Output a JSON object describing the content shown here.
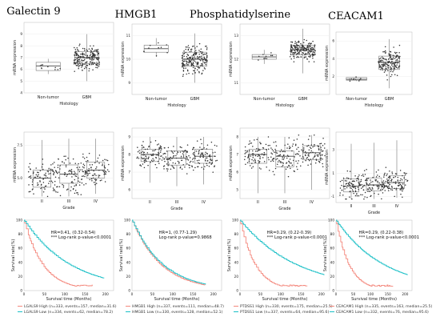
{
  "panels": [
    {
      "title": "Galectin 9",
      "histology": {
        "ylabel": "mRNA expression",
        "xlabel": "Histology",
        "ylim": [
          4,
          10
        ],
        "yticks": [
          "4",
          "5",
          "6",
          "7",
          "8",
          "9"
        ],
        "groups": [
          {
            "label": "Non-tumor",
            "q1": 5.9,
            "median": 6.3,
            "q3": 6.6,
            "min": 5.6,
            "max": 6.9,
            "n": 10
          },
          {
            "label": "GBM",
            "q1": 6.5,
            "median": 7.0,
            "q3": 7.5,
            "min": 5.0,
            "max": 9.0,
            "n": 200
          }
        ]
      },
      "grade": {
        "ylabel": "mRNA expression",
        "xlabel": "Grade",
        "ylim": [
          3.5,
          8.5
        ],
        "yticks": [
          "5.0",
          "7.5"
        ],
        "groups": [
          {
            "label": "II",
            "q1": 4.3,
            "median": 5.0,
            "q3": 5.6,
            "min": 3.6,
            "max": 7.9
          },
          {
            "label": "III",
            "q1": 4.6,
            "median": 5.3,
            "q3": 6.0,
            "min": 3.6,
            "max": 8.0
          },
          {
            "label": "IV",
            "q1": 5.0,
            "median": 5.6,
            "q3": 6.2,
            "min": 3.8,
            "max": 8.0
          }
        ]
      },
      "survival": {
        "ylabel": "Survival rate(%)",
        "xlabel": "Survival time (Months)",
        "xticks": [
          "0",
          "50",
          "100",
          "150",
          "200"
        ],
        "yticks": [
          "0",
          "20",
          "40",
          "60",
          "80",
          "100"
        ],
        "hr_text": "HR=0.41, (0.32-0.54)",
        "pval_text": "*** Log-rank p-value<0.0001",
        "legend": [
          "LGALS9 High (n=333, events=157, median=31.6)",
          "LGALS9 Low  (n=334, events=62, median=78.2)"
        ],
        "low_median": 78.2,
        "high_median": 31.6
      }
    },
    {
      "title": "HMGB1",
      "histology": {
        "ylabel": "mRNA expression",
        "xlabel": "Histology",
        "ylim": [
          8.5,
          11.5
        ],
        "yticks": [
          "9",
          "10",
          "11"
        ],
        "groups": [
          {
            "label": "Non-tumor",
            "q1": 10.3,
            "median": 10.45,
            "q3": 10.6,
            "min": 10.1,
            "max": 10.9,
            "n": 10
          },
          {
            "label": "GBM",
            "q1": 9.7,
            "median": 10.0,
            "q3": 10.3,
            "min": 9.0,
            "max": 11.1,
            "n": 200
          }
        ]
      },
      "grade": {
        "ylabel": "mRNA expression",
        "xlabel": "Grade",
        "ylim": [
          5.5,
          9.5
        ],
        "yticks": [
          "6",
          "7",
          "8",
          "9"
        ],
        "groups": [
          {
            "label": "II",
            "q1": 7.6,
            "median": 8.0,
            "q3": 8.3,
            "min": 6.4,
            "max": 9.0
          },
          {
            "label": "III",
            "q1": 7.4,
            "median": 7.8,
            "q3": 8.2,
            "min": 6.2,
            "max": 9.0
          },
          {
            "label": "IV",
            "q1": 7.5,
            "median": 7.9,
            "q3": 8.3,
            "min": 6.3,
            "max": 9.0
          }
        ]
      },
      "survival": {
        "ylabel": "Survival rate(%)",
        "xlabel": "Survival time (Months)",
        "xticks": [
          "0",
          "50",
          "100",
          "150",
          "200"
        ],
        "yticks": [
          "0",
          "20",
          "40",
          "60",
          "80",
          "100"
        ],
        "hr_text": "HR=1, (0.77-1.29)",
        "pval_text": "Log-rank p-value=0.9868",
        "legend": [
          "HMGB1 High (n=337, events=111, median=48.7)",
          "HMGB1 Low  (n=330, events=128, median=52.1)"
        ],
        "low_median": 52.1,
        "high_median": 48.7
      }
    },
    {
      "title": "Phosphatidylserine",
      "histology": {
        "ylabel": "mRNA expression",
        "xlabel": "Histology",
        "ylim": [
          10.5,
          13.5
        ],
        "yticks": [
          "11",
          "12",
          "13"
        ],
        "groups": [
          {
            "label": "Non-tumor",
            "q1": 12.0,
            "median": 12.1,
            "q3": 12.2,
            "min": 11.8,
            "max": 12.4,
            "n": 10
          },
          {
            "label": "GBM",
            "q1": 12.2,
            "median": 12.4,
            "q3": 12.6,
            "min": 11.4,
            "max": 13.3,
            "n": 200
          }
        ]
      },
      "grade": {
        "ylabel": "mRNA expression",
        "xlabel": "Grade",
        "ylim": [
          4.5,
          8.5
        ],
        "yticks": [
          "5",
          "6",
          "7",
          "8"
        ],
        "groups": [
          {
            "label": "II",
            "q1": 6.5,
            "median": 7.0,
            "q3": 7.3,
            "min": 4.8,
            "max": 8.0
          },
          {
            "label": "III",
            "q1": 6.3,
            "median": 6.9,
            "q3": 7.2,
            "min": 4.8,
            "max": 8.0
          },
          {
            "label": "IV",
            "q1": 6.7,
            "median": 7.1,
            "q3": 7.5,
            "min": 5.0,
            "max": 8.1
          }
        ]
      },
      "survival": {
        "ylabel": "Survival rate(%)",
        "xlabel": "Survival time (Months)",
        "xticks": [
          "0",
          "50",
          "100",
          "150",
          "200"
        ],
        "yticks": [
          "0",
          "20",
          "40",
          "60",
          "80",
          "100"
        ],
        "hr_text": "HR=0.29, (0.22-0.39)",
        "pval_text": "*** Log-rank p-value<0.0001",
        "legend": [
          "PTDSS1 High (n=330, events=175, median=25.5)",
          "PTDSS1 Low  (n=337, events=64, median=95.6)"
        ],
        "low_median": 95.6,
        "high_median": 25.5
      }
    },
    {
      "title": "CEACAM1",
      "histology": {
        "ylabel": "mRNA expression",
        "xlabel": "Histology",
        "ylim": [
          0,
          7
        ],
        "yticks": [
          "2",
          "4",
          "6"
        ],
        "groups": [
          {
            "label": "Non-tumor",
            "q1": 1.6,
            "median": 1.7,
            "q3": 1.9,
            "min": 1.5,
            "max": 2.0,
            "n": 10
          },
          {
            "label": "GBM",
            "q1": 2.8,
            "median": 3.6,
            "q3": 4.3,
            "min": 0.7,
            "max": 6.2,
            "n": 160
          }
        ]
      },
      "grade": {
        "ylabel": "mRNA expression",
        "xlabel": "Grade",
        "ylim": [
          -1.5,
          4.5
        ],
        "yticks": [
          "-1",
          "1",
          "3"
        ],
        "groups": [
          {
            "label": "II",
            "q1": -0.6,
            "median": -0.1,
            "q3": 0.5,
            "min": -1.2,
            "max": 3.5
          },
          {
            "label": "III",
            "q1": -0.5,
            "median": 0.0,
            "q3": 0.6,
            "min": -1.2,
            "max": 3.6
          },
          {
            "label": "IV",
            "q1": -0.3,
            "median": 0.2,
            "q3": 0.8,
            "min": -1.1,
            "max": 3.8
          }
        ]
      },
      "survival": {
        "ylabel": "Survival rate(%)",
        "xlabel": "Survival time (Months)",
        "xticks": [
          "0",
          "50",
          "100",
          "150",
          "200"
        ],
        "yticks": [
          "0",
          "20",
          "40",
          "60",
          "80",
          "100"
        ],
        "hr_text": "HR=0.29, (0.22-0.38)",
        "pval_text": "*** Log-rank p-value<0.0001",
        "legend": [
          "CEACAM1 High (n=335, events=163, median=25.5)",
          "CEACAM1 Low  (n=332, events=76, median=95.6)"
        ],
        "low_median": 95.6,
        "high_median": 25.5
      }
    }
  ],
  "chart_data": [
    {
      "type": "box",
      "panel": "Galectin 9 – Histology",
      "categories": [
        "Non-tumor",
        "GBM"
      ],
      "medians": [
        6.3,
        7.0
      ],
      "ylabel": "mRNA expression",
      "xlabel": "Histology"
    },
    {
      "type": "box",
      "panel": "HMGB1 – Histology",
      "categories": [
        "Non-tumor",
        "GBM"
      ],
      "medians": [
        10.45,
        10.0
      ],
      "ylabel": "mRNA expression",
      "xlabel": "Histology"
    },
    {
      "type": "box",
      "panel": "Phosphatidylserine – Histology",
      "categories": [
        "Non-tumor",
        "GBM"
      ],
      "medians": [
        12.1,
        12.4
      ],
      "ylabel": "mRNA expression",
      "xlabel": "Histology"
    },
    {
      "type": "box",
      "panel": "CEACAM1 – Histology",
      "categories": [
        "Non-tumor",
        "GBM"
      ],
      "medians": [
        1.7,
        3.6
      ],
      "ylabel": "mRNA expression",
      "xlabel": "Histology"
    },
    {
      "type": "box",
      "panel": "Galectin 9 – Grade",
      "categories": [
        "II",
        "III",
        "IV"
      ],
      "medians": [
        5.0,
        5.3,
        5.6
      ],
      "xlabel": "Grade"
    },
    {
      "type": "box",
      "panel": "HMGB1 – Grade",
      "categories": [
        "II",
        "III",
        "IV"
      ],
      "medians": [
        8.0,
        7.8,
        7.9
      ],
      "xlabel": "Grade"
    },
    {
      "type": "box",
      "panel": "Phosphatidylserine – Grade",
      "categories": [
        "II",
        "III",
        "IV"
      ],
      "medians": [
        7.0,
        6.9,
        7.1
      ],
      "xlabel": "Grade"
    },
    {
      "type": "box",
      "panel": "CEACAM1 – Grade",
      "categories": [
        "II",
        "III",
        "IV"
      ],
      "medians": [
        -0.1,
        0.0,
        0.2
      ],
      "xlabel": "Grade"
    },
    {
      "type": "line",
      "panel": "Galectin 9 – Survival",
      "series": [
        {
          "name": "LGALS9 High",
          "median": 31.6
        },
        {
          "name": "LGALS9 Low",
          "median": 78.2
        }
      ],
      "xlabel": "Survival time (Months)",
      "ylabel": "Survival rate(%)"
    },
    {
      "type": "line",
      "panel": "HMGB1 – Survival",
      "series": [
        {
          "name": "HMGB1 High",
          "median": 48.7
        },
        {
          "name": "HMGB1 Low",
          "median": 52.1
        }
      ],
      "xlabel": "Survival time (Months)",
      "ylabel": "Survival rate(%)"
    },
    {
      "type": "line",
      "panel": "Phosphatidylserine – Survival",
      "series": [
        {
          "name": "PTDSS1 High",
          "median": 25.5
        },
        {
          "name": "PTDSS1 Low",
          "median": 95.6
        }
      ],
      "xlabel": "Survival time (Months)",
      "ylabel": "Survival rate(%)"
    },
    {
      "type": "line",
      "panel": "CEACAM1 – Survival",
      "series": [
        {
          "name": "CEACAM1 High",
          "median": 25.5
        },
        {
          "name": "CEACAM1 Low",
          "median": 95.6
        }
      ],
      "xlabel": "Survival time (Months)",
      "ylabel": "Survival rate(%)"
    }
  ],
  "colors": {
    "high": "#f4877c",
    "low": "#19bfc6",
    "point": "#333333",
    "box": "#777777"
  }
}
